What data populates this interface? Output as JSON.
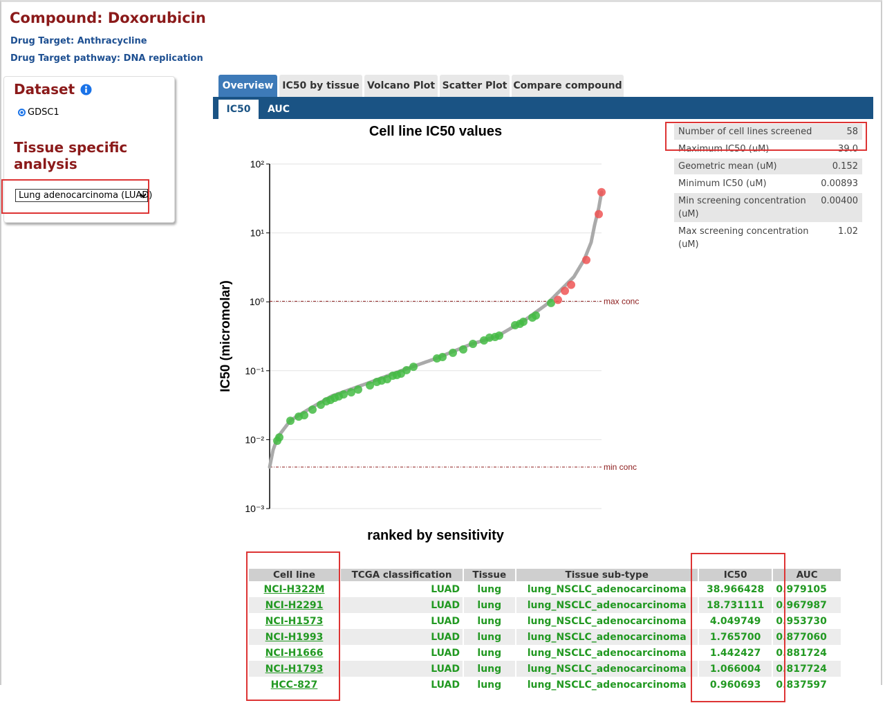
{
  "header": {
    "title": "Compound: Doxorubicin",
    "drug_target": "Drug Target: Anthracycline",
    "drug_pathway": "Drug Target pathway: DNA replication"
  },
  "sidebar": {
    "dataset_title": "Dataset",
    "dataset_option": "GDSC1",
    "tissue_title": "Tissue specific analysis",
    "tissue_select": "Lung adenocarcinoma (LUAD)"
  },
  "tabs": [
    "Overview",
    "IC50 by tissue",
    "Volcano Plot",
    "Scatter Plot",
    "Compare compound"
  ],
  "subtabs": [
    "IC50",
    "AUC"
  ],
  "chart_data": {
    "type": "scatter",
    "title": "Cell line IC50 values",
    "y_label": "IC50 (micromolar)",
    "subtitle": "ranked by sensitivity",
    "log_y": true,
    "grid": true,
    "ylim": [
      0.001,
      100
    ],
    "yticks": [
      {
        "value": 100,
        "label": "10²"
      },
      {
        "value": 10,
        "label": "10¹"
      },
      {
        "value": 1,
        "label": "10⁰"
      },
      {
        "value": 0.1,
        "label": "10⁻¹"
      },
      {
        "value": 0.01,
        "label": "10⁻²"
      },
      {
        "value": 0.001,
        "label": "10⁻³"
      }
    ],
    "xlim": [
      0,
      960
    ],
    "series": [
      {
        "mode": "line",
        "color": "#aaaaaa",
        "x": [
          0,
          10,
          24,
          60,
          120,
          180,
          280,
          380,
          480,
          580,
          660,
          740,
          800,
          840,
          880,
          910,
          930,
          940,
          952,
          960
        ],
        "values": [
          0.004,
          0.0071,
          0.011,
          0.019,
          0.029,
          0.043,
          0.065,
          0.1,
          0.15,
          0.24,
          0.32,
          0.55,
          0.91,
          1.45,
          2.3,
          4.1,
          7.3,
          13,
          23,
          39
        ]
      },
      {
        "mode": "markers",
        "color": "#44bb44",
        "x": [
          22,
          28,
          60,
          84,
          100,
          124,
          148,
          164,
          176,
          188,
          200,
          214,
          236,
          256,
          290,
          310,
          324,
          340,
          356,
          368,
          380,
          396,
          416,
          484,
          500,
          530,
          560,
          588,
          620,
          636,
          652,
          664,
          710,
          724,
          734,
          760,
          770,
          814
        ],
        "values": [
          0.00964,
          0.0108,
          0.0188,
          0.0216,
          0.0226,
          0.0273,
          0.0321,
          0.036,
          0.0377,
          0.0404,
          0.0424,
          0.0454,
          0.0486,
          0.0533,
          0.0612,
          0.0687,
          0.072,
          0.0755,
          0.0847,
          0.0867,
          0.0908,
          0.102,
          0.114,
          0.151,
          0.158,
          0.182,
          0.204,
          0.245,
          0.275,
          0.302,
          0.309,
          0.324,
          0.458,
          0.48,
          0.514,
          0.59,
          0.632,
          0.960693
        ]
      },
      {
        "mode": "markers",
        "color": "#ee5555",
        "x": [
          834,
          854,
          872,
          916,
          952,
          960
        ],
        "values": [
          1.066004,
          1.442427,
          1.7657,
          4.049749,
          18.731111,
          38.966428
        ]
      }
    ],
    "reference_color": "#8b1a1a",
    "reference_lines": [
      {
        "value": 1.02,
        "label": "max conc"
      },
      {
        "value": 0.004,
        "label": "min conc"
      }
    ]
  },
  "stats": [
    {
      "label": "Number of cell lines screened",
      "value": "58"
    },
    {
      "label": "Maximum IC50 (uM)",
      "value": "39.0"
    },
    {
      "label": "Geometric mean (uM)",
      "value": "0.152"
    },
    {
      "label": "Minimum IC50 (uM)",
      "value": "0.00893"
    },
    {
      "label": "Min screening concentration (uM)",
      "value": "0.00400"
    },
    {
      "label": "Max screening concentration (uM)",
      "value": "1.02"
    }
  ],
  "table": {
    "columns": [
      "Cell line",
      "TCGA classification",
      "Tissue",
      "Tissue sub-type",
      "IC50",
      "AUC"
    ],
    "rows": [
      [
        "NCI-H322M",
        "LUAD",
        "lung",
        "lung_NSCLC_adenocarcinoma",
        "38.966428",
        "0.979105"
      ],
      [
        "NCI-H2291",
        "LUAD",
        "lung",
        "lung_NSCLC_adenocarcinoma",
        "18.731111",
        "0.967987"
      ],
      [
        "NCI-H1573",
        "LUAD",
        "lung",
        "lung_NSCLC_adenocarcinoma",
        "4.049749",
        "0.953730"
      ],
      [
        "NCI-H1993",
        "LUAD",
        "lung",
        "lung_NSCLC_adenocarcinoma",
        "1.765700",
        "0.877060"
      ],
      [
        "NCI-H1666",
        "LUAD",
        "lung",
        "lung_NSCLC_adenocarcinoma",
        "1.442427",
        "0.881724"
      ],
      [
        "NCI-H1793",
        "LUAD",
        "lung",
        "lung_NSCLC_adenocarcinoma",
        "1.066004",
        "0.817724"
      ],
      [
        "HCC-827",
        "LUAD",
        "lung",
        "lung_NSCLC_adenocarcinoma",
        "0.960693",
        "0.837597"
      ]
    ]
  }
}
